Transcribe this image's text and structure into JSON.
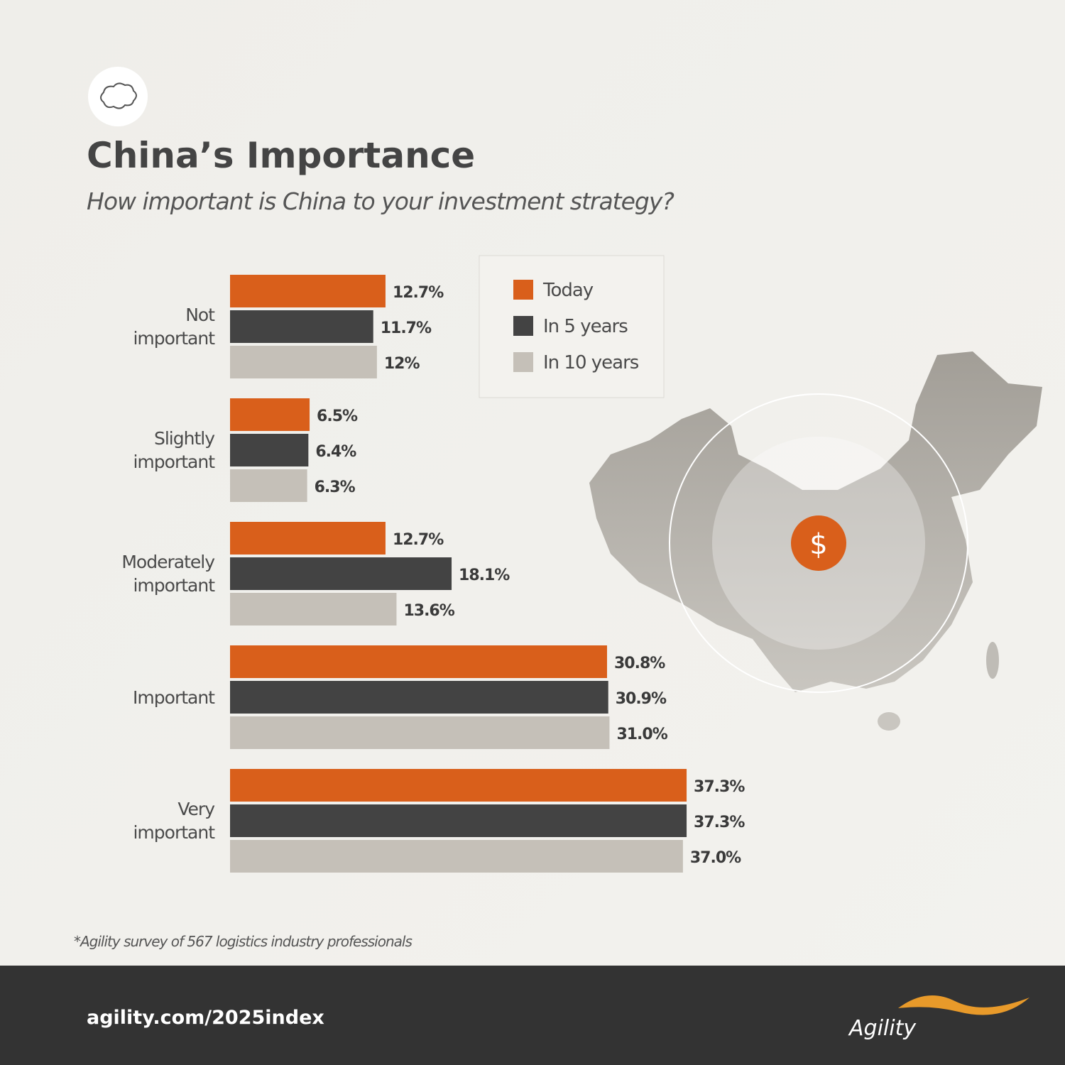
{
  "title": "China’s Importance",
  "subtitle": "How important is China to your investment strategy?",
  "chart_data": {
    "type": "hbar",
    "categories": [
      "Not important",
      "Slightly important",
      "Moderately important",
      "Important",
      "Very important"
    ],
    "series": [
      {
        "name": "Today",
        "color": "#d95f1b",
        "values": [
          12.7,
          6.5,
          12.7,
          30.8,
          37.3
        ],
        "value_labels": [
          "12.7%",
          "6.5%",
          "12.7%",
          "30.8%",
          "37.3%"
        ]
      },
      {
        "name": "In 5 years",
        "color": "#434343",
        "values": [
          11.7,
          6.4,
          18.1,
          30.9,
          37.3
        ],
        "value_labels": [
          "11.7%",
          "6.4%",
          "18.1%",
          "30.9%",
          "37.3%"
        ]
      },
      {
        "name": "In 10 years",
        "color": "#c5c0b8",
        "values": [
          12,
          6.3,
          13.6,
          31.0,
          37.0
        ],
        "value_labels": [
          "12%",
          "6.3%",
          "13.6%",
          "31.0%",
          "37.0%"
        ]
      }
    ]
  },
  "map_symbol": "$",
  "footnote": "*Agility survey of 567 logistics industry professionals",
  "footer": {
    "url": "agility.com/2025index",
    "brand": "Agility"
  }
}
